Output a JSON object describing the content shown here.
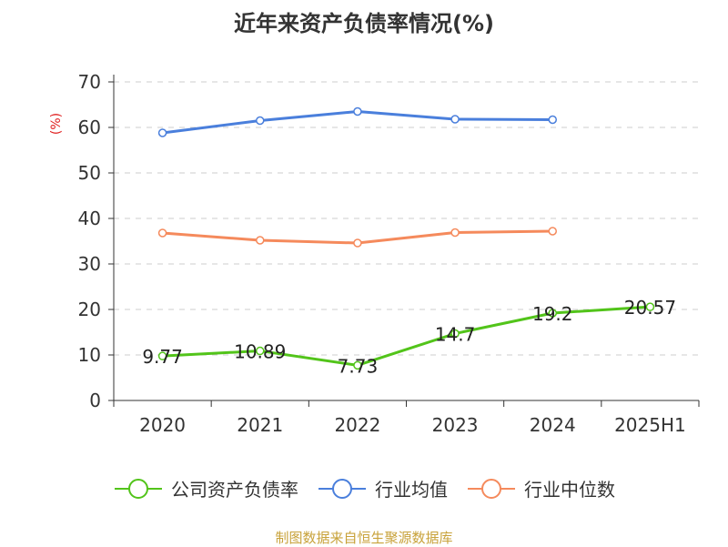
{
  "chart_data": {
    "type": "line",
    "title": "近年来资产负债率情况(%)",
    "ylabel": "(%)",
    "xlabel": "",
    "categories": [
      "2020",
      "2021",
      "2022",
      "2023",
      "2024",
      "2025H1"
    ],
    "ylim": [
      0,
      70
    ],
    "yticks": [
      0,
      10,
      20,
      30,
      40,
      50,
      60,
      70
    ],
    "grid": true,
    "legend_position": "bottom",
    "series": [
      {
        "name": "公司资产负债率",
        "color": "#52c41a",
        "values": [
          9.77,
          10.89,
          7.73,
          14.7,
          19.2,
          20.57
        ],
        "labels": [
          "9.77",
          "10.89",
          "7.73",
          "14.7",
          "19.2",
          "20.57"
        ]
      },
      {
        "name": "行业均值",
        "color": "#4a7fdc",
        "values": [
          58.8,
          61.5,
          63.5,
          61.8,
          61.7,
          null
        ]
      },
      {
        "name": "行业中位数",
        "color": "#f58a5c",
        "values": [
          36.8,
          35.2,
          34.6,
          36.9,
          37.2,
          null
        ]
      }
    ]
  },
  "source": "制图数据来自恒生聚源数据库"
}
